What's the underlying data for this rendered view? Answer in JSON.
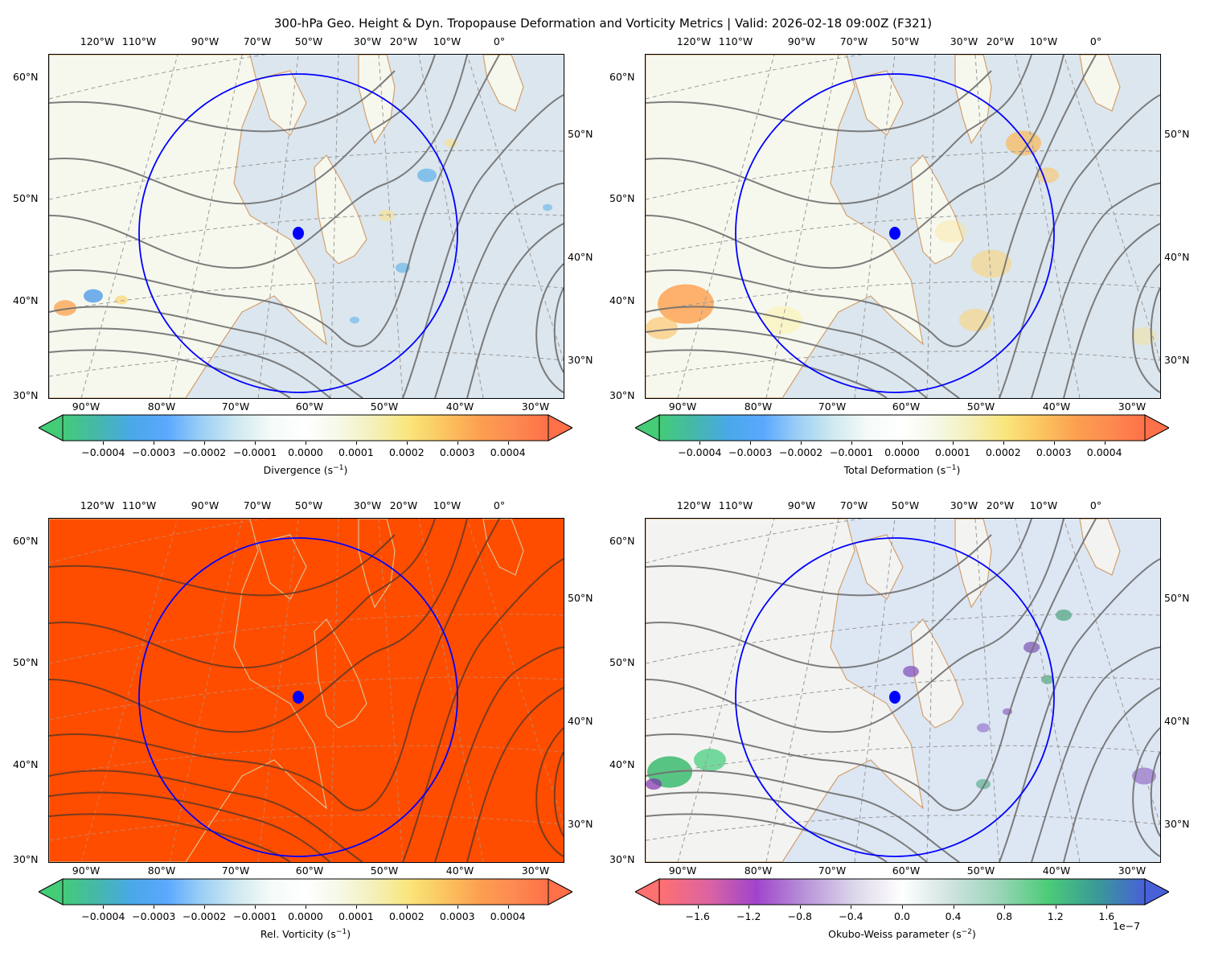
{
  "figure": {
    "title": "300-hPa Geo. Height & Dyn. Tropopause Deformation and Vorticity Metrics |  Valid: 2026-02-18 09:00Z (F321)"
  },
  "colors": {
    "center_marker": "#0000ff",
    "radius_circle": "#0000ff",
    "contour_line": "#6e6e6e",
    "coastline": "#d2a06e",
    "vorticity_fill": "#ff4d00",
    "ocean": "#dce6ee",
    "land": "#f6f8ee"
  },
  "axes": {
    "top_lon_labels": [
      "120°W",
      "110°W",
      "90°W",
      "70°W",
      "50°W",
      "30°W",
      "20°W",
      "10°W",
      "0°"
    ],
    "left_lat_labels": [
      "60°N",
      "50°N",
      "40°N",
      "30°N"
    ],
    "right_lat_labels": [
      "50°N",
      "40°N",
      "30°N"
    ],
    "bottom_lon_labels": [
      "90°W",
      "80°W",
      "70°W",
      "60°W",
      "50°W",
      "40°W",
      "30°W"
    ]
  },
  "panels": [
    {
      "id": "divergence",
      "field": "Divergence",
      "colorbar_label": "Divergence (s",
      "colorbar_label_exp": "−1",
      "colorbar_label_end": ")",
      "colorbar_ticks": [
        "−0.0004",
        "−0.0003",
        "−0.0002",
        "−0.0001",
        "0.0000",
        "0.0001",
        "0.0002",
        "0.0003",
        "0.0004"
      ],
      "colorbar_range": [
        -0.00048,
        0.00048
      ],
      "colorbar_multiplier": ""
    },
    {
      "id": "total-deformation",
      "field": "Total Deformation",
      "colorbar_label": "Total Deformation (s",
      "colorbar_label_exp": "−1",
      "colorbar_label_end": ")",
      "colorbar_ticks": [
        "−0.0004",
        "−0.0003",
        "−0.0002",
        "−0.0001",
        "0.0000",
        "0.0001",
        "0.0002",
        "0.0003",
        "0.0004"
      ],
      "colorbar_range": [
        -0.00048,
        0.00048
      ],
      "colorbar_multiplier": ""
    },
    {
      "id": "rel-vorticity",
      "field": "Rel. Vorticity",
      "colorbar_label": "Rel. Vorticity (s",
      "colorbar_label_exp": "−1",
      "colorbar_label_end": ")",
      "colorbar_ticks": [
        "−0.0004",
        "−0.0003",
        "−0.0002",
        "−0.0001",
        "0.0000",
        "0.0001",
        "0.0002",
        "0.0003",
        "0.0004"
      ],
      "colorbar_range": [
        -0.00048,
        0.00048
      ],
      "colorbar_multiplier": ""
    },
    {
      "id": "okubo-weiss",
      "field": "Okubo-Weiss parameter",
      "colorbar_label": "Okubo-Weiss parameter (s",
      "colorbar_label_exp": "−2",
      "colorbar_label_end": ")",
      "colorbar_ticks": [
        "−1.6",
        "−1.2",
        "−0.8",
        "−0.4",
        "0.0",
        "0.4",
        "0.8",
        "1.2",
        "1.6"
      ],
      "colorbar_range": [
        -1.9,
        1.9
      ],
      "colorbar_multiplier": "1e−7"
    }
  ]
}
